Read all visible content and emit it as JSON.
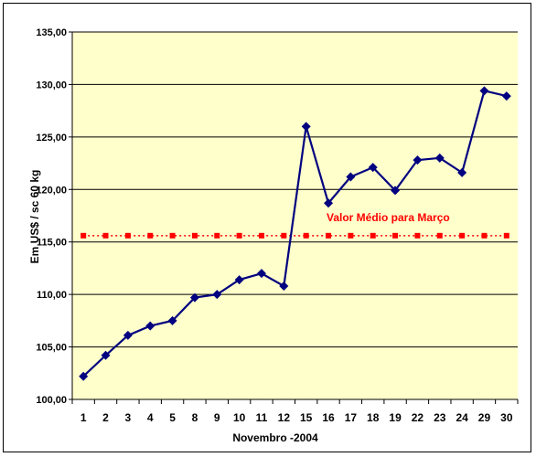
{
  "chart_data": {
    "type": "line",
    "categories": [
      "1",
      "2",
      "3",
      "4",
      "5",
      "8",
      "9",
      "10",
      "11",
      "12",
      "15",
      "16",
      "17",
      "18",
      "19",
      "22",
      "23",
      "24",
      "29",
      "30"
    ],
    "series": [
      {
        "values": [
          102.2,
          104.2,
          106.1,
          107.0,
          107.5,
          109.7,
          110.0,
          111.4,
          112.0,
          110.8,
          126.0,
          118.7,
          121.2,
          122.1,
          119.9,
          122.8,
          123.0,
          121.6,
          129.4,
          128.9
        ],
        "color": "#000080",
        "marker": "diamond"
      },
      {
        "name": "Valor Médio para Março",
        "values": [
          115.6,
          115.6,
          115.6,
          115.6,
          115.6,
          115.6,
          115.6,
          115.6,
          115.6,
          115.6,
          115.6,
          115.6,
          115.6,
          115.6,
          115.6,
          115.6,
          115.6,
          115.6,
          115.6,
          115.6
        ],
        "color": "#ff0000",
        "marker": "square",
        "line": "dotted"
      }
    ],
    "xlabel": "Novembro -2004",
    "ylabel": "Em US$ / sc 60 kg",
    "ylim": [
      100,
      135
    ],
    "yticks": [
      "100,00",
      "105,00",
      "110,00",
      "115,00",
      "120,00",
      "125,00",
      "130,00",
      "135,00"
    ],
    "annotation": "Valor Médio para Março",
    "grid": "horizontal",
    "plot_background": "#ffffcc"
  }
}
